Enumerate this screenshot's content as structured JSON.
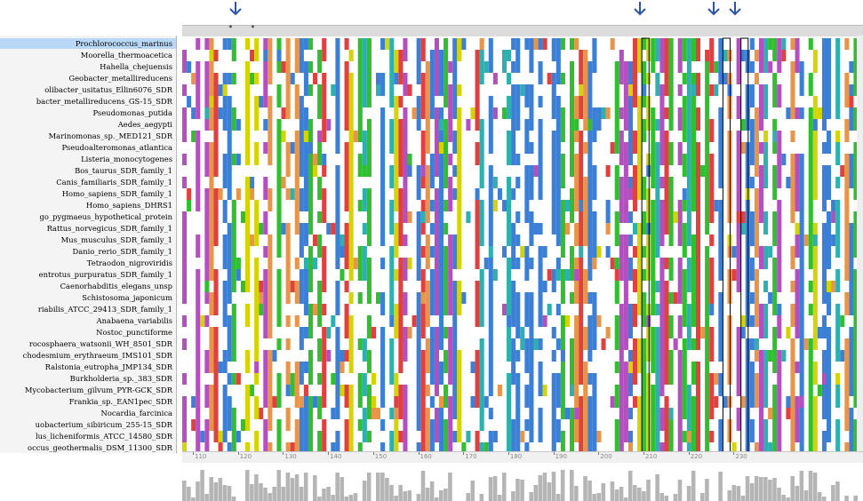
{
  "sequences": [
    {
      "name": "Prochlorococcus_marinus",
      "selected": true
    },
    {
      "name": "Moorella_thermoacetica"
    },
    {
      "name": "Hahella_chejuensis"
    },
    {
      "name": "Geobacter_metallireducens"
    },
    {
      "name": "olibacter_usitatus_Ellin6076_SDR"
    },
    {
      "name": "bacter_metallireducens_GS-15_SDR"
    },
    {
      "name": "Pseudomonas_putida"
    },
    {
      "name": "Aedes_aegypti"
    },
    {
      "name": "Marinomonas_sp._MED121_SDR"
    },
    {
      "name": "Pseudoalteromonas_atlantica"
    },
    {
      "name": "Listeria_monocytogenes"
    },
    {
      "name": "Bos_taurus_SDR_family_1"
    },
    {
      "name": "Canis_familiaris_SDR_family_1"
    },
    {
      "name": "Homo_sapiens_SDR_family_1"
    },
    {
      "name": "Homo_sapiens_DHRS1"
    },
    {
      "name": "go_pygmaeus_hypothetical_protein"
    },
    {
      "name": "Rattus_norvegicus_SDR_family_1"
    },
    {
      "name": "Mus_musculus_SDR_family_1"
    },
    {
      "name": "Danio_rerio_SDR_family_1"
    },
    {
      "name": "Tetraodon_nigroviridis"
    },
    {
      "name": "entrotus_purpuratus_SDR_family_1"
    },
    {
      "name": "Caenorhabditis_elegans_unsp"
    },
    {
      "name": "Schistosoma_japonicum"
    },
    {
      "name": "riabilis_ATCC_29413_SDR_family_1"
    },
    {
      "name": "Anabaena_variabilis"
    },
    {
      "name": "Nostoc_punctiforme"
    },
    {
      "name": "rocosphaera_watsonii_WH_8501_SDR"
    },
    {
      "name": "chodesmium_erythraeum_IMS101_SDR"
    },
    {
      "name": "Ralstonia_eutropha_JMP134_SDR"
    },
    {
      "name": "Burkholderia_sp._383_SDR"
    },
    {
      "name": "Mycobacterium_gilvum_PYR-GCK_SDR"
    },
    {
      "name": "Frankia_sp._EAN1pec_SDR"
    },
    {
      "name": "Nocardia_farcinica"
    },
    {
      "name": "uobacterium_sibiricum_255-15_SDR"
    },
    {
      "name": "lus_licheniformis_ATCC_14580_SDR"
    },
    {
      "name": "occus_geothermalis_DSM_11300_SDR"
    }
  ],
  "ruler": {
    "labels": [
      "110",
      "120",
      "130",
      "140",
      "150",
      "160",
      "170",
      "180",
      "190",
      "200",
      "210",
      "220",
      "230"
    ]
  },
  "conservation_stars": [
    "*",
    "*"
  ],
  "colors": {
    "hydrophobic": "#3b7fd6",
    "glycine": "#e8954a",
    "proline": "#d4d400",
    "polar": "#2fbf2f",
    "negative": "#b34fbf",
    "positive": "#e04040",
    "aromatic": "#2eb0b0",
    "arrow": "#2a55a8"
  }
}
